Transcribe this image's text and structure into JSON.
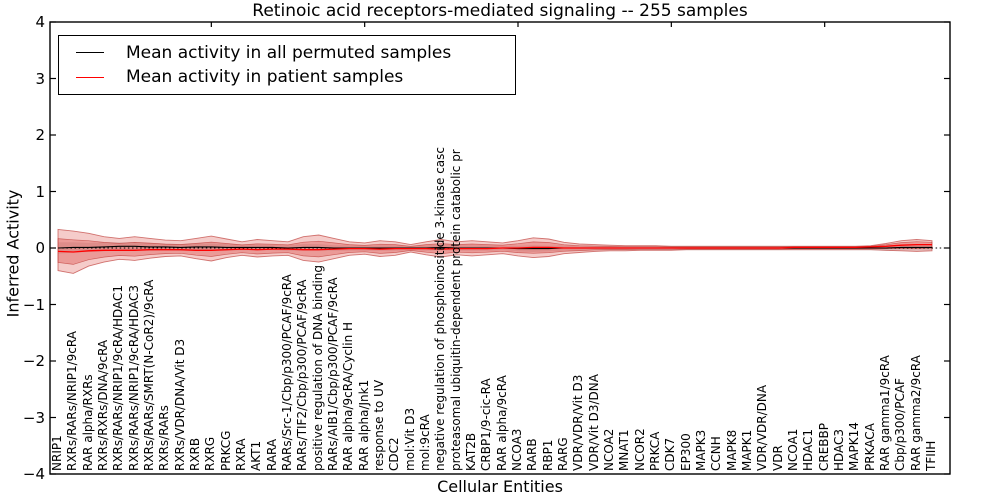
{
  "title": "Retinoic acid receptors-mediated signaling -- 255 samples",
  "axes": {
    "xlabel": "Cellular Entities",
    "ylabel": "Inferred Activity",
    "yticks": [
      4,
      3,
      2,
      1,
      0,
      -1,
      -2,
      -3,
      -4
    ],
    "ylim": [
      -4,
      4
    ]
  },
  "legend": {
    "items": [
      {
        "label": "Mean activity in all permuted samples",
        "color": "#000000"
      },
      {
        "label": "Mean activity in patient samples",
        "color": "#ff0000"
      }
    ]
  },
  "colors": {
    "frame": "#000000",
    "band_fill": "rgba(222,85,80,0.30)",
    "band_inner_fill": "rgba(222,85,80,0.42)",
    "band_edge": "rgba(187,52,47,0.65)",
    "permuted_band_fill": "rgba(0,0,0,0.13)",
    "zero_line": "#000000",
    "permuted_line": "#000000",
    "patient_line": "#ff0000"
  },
  "chart_data": {
    "type": "line",
    "title": "Retinoic acid receptors-mediated signaling -- 255 samples",
    "xlabel": "Cellular Entities",
    "ylabel": "Inferred Activity",
    "ylim": [
      -4,
      4
    ],
    "grid": false,
    "legend_position": "upper left",
    "zero_reference_line": true,
    "categories": [
      "NRIP1",
      "RXRs/RARs/NRIP1/9cRA",
      "RAR alpha/RXRs",
      "RXRs/RXRs/DNA/9cRA",
      "RXRs/RARs/NRIP1/9cRA/HDAC1",
      "RXRs/RARs/NRIP1/9cRA/HDAC3",
      "RXRs/RARs/SMRT(N-CoR2)/9cRA",
      "RXRs/RARs",
      "RXRs/VDR/DNA/Vit D3",
      "RXRB",
      "RXRG",
      "PRKCG",
      "RXRA",
      "AKT1",
      "RARA",
      "RARs/Src-1/Cbp/p300/PCAF/9cRA",
      "RARs/TIF2/Cbp/p300/PCAF/9cRA",
      "positive regulation of DNA binding",
      "RARs/AIB1/Cbp/p300/PCAF/9cRA",
      "RAR alpha/9cRA/Cyclin H",
      "RAR alpha/Jnk1",
      "response to UV",
      "CDC2",
      "mol:Vit D3",
      "mol:9cRA",
      "negative regulation of phosphoinositide 3-kinase casc",
      "proteasomal ubiquitin-dependent protein catabolic pr",
      "KAT2B",
      "CRBP1/9-cic-RA",
      "RAR alpha/9cRA",
      "NCOA3",
      "RARB",
      "RBP1",
      "RARG",
      "VDR/VDR/Vit D3",
      "VDR/Vit D3/DNA",
      "NCOA2",
      "MNAT1",
      "NCOR2",
      "PRKCA",
      "CDK7",
      "EP300",
      "MAPK3",
      "CCNH",
      "MAPK8",
      "MAPK1",
      "VDR/VDR/DNA",
      "VDR",
      "NCOA1",
      "HDAC1",
      "CREBBP",
      "HDAC3",
      "MAPK14",
      "PRKACA",
      "RAR gamma1/9cRA",
      "Cbp/p300/PCAF",
      "RAR gamma2/9cRA",
      "TFIIH"
    ],
    "series": [
      {
        "name": "Mean activity in all permuted samples",
        "color": "#000000",
        "values": [
          0,
          0.01,
          0.01,
          0.02,
          0.03,
          0.03,
          0.02,
          0.02,
          0.01,
          0.02,
          0.02,
          0.01,
          0.01,
          0.01,
          0.01,
          0,
          0.01,
          0.01,
          0,
          0,
          0,
          0,
          0,
          0,
          0,
          0.01,
          0,
          0,
          0,
          0,
          -0.01,
          -0.01,
          -0.01,
          0,
          0,
          0,
          0,
          0,
          0,
          0,
          0,
          0,
          0,
          0,
          0,
          0,
          0,
          0,
          0,
          0,
          0,
          0,
          0,
          0,
          0,
          0.01,
          0.01,
          0.01
        ]
      },
      {
        "name": "Mean activity in patient samples",
        "color": "#ff0000",
        "values": [
          -0.06,
          -0.07,
          -0.05,
          -0.04,
          -0.04,
          -0.04,
          -0.03,
          -0.03,
          -0.03,
          -0.04,
          -0.04,
          -0.03,
          -0.02,
          -0.03,
          -0.02,
          -0.02,
          -0.03,
          -0.03,
          -0.02,
          -0.01,
          -0.01,
          -0.02,
          -0.01,
          -0.01,
          -0.01,
          -0.02,
          -0.01,
          -0.01,
          -0.01,
          0,
          0,
          0.01,
          0.01,
          0,
          0,
          0,
          0,
          0,
          0,
          0,
          0,
          0,
          0,
          0,
          0,
          0,
          0,
          0,
          0.01,
          0.01,
          0.01,
          0.01,
          0.01,
          0.02,
          0.03,
          0.05,
          0.06,
          0.06
        ]
      }
    ],
    "patient_band": {
      "upper": [
        0.33,
        0.3,
        0.26,
        0.2,
        0.17,
        0.2,
        0.17,
        0.14,
        0.13,
        0.17,
        0.21,
        0.16,
        0.11,
        0.15,
        0.13,
        0.11,
        0.2,
        0.23,
        0.17,
        0.11,
        0.09,
        0.13,
        0.11,
        0.06,
        0.11,
        0.15,
        0.11,
        0.13,
        0.11,
        0.09,
        0.13,
        0.18,
        0.16,
        0.1,
        0.07,
        0.06,
        0.05,
        0.04,
        0.04,
        0.04,
        0.03,
        0.03,
        0.03,
        0.03,
        0.03,
        0.03,
        0.03,
        0.03,
        0.03,
        0.03,
        0.03,
        0.03,
        0.03,
        0.04,
        0.08,
        0.13,
        0.15,
        0.13
      ],
      "lower": [
        -0.4,
        -0.45,
        -0.32,
        -0.25,
        -0.2,
        -0.22,
        -0.18,
        -0.15,
        -0.14,
        -0.19,
        -0.23,
        -0.17,
        -0.13,
        -0.16,
        -0.14,
        -0.13,
        -0.22,
        -0.25,
        -0.19,
        -0.13,
        -0.11,
        -0.15,
        -0.13,
        -0.07,
        -0.12,
        -0.16,
        -0.12,
        -0.14,
        -0.12,
        -0.1,
        -0.14,
        -0.17,
        -0.15,
        -0.1,
        -0.08,
        -0.06,
        -0.05,
        -0.05,
        -0.04,
        -0.04,
        -0.04,
        -0.03,
        -0.03,
        -0.03,
        -0.03,
        -0.03,
        -0.03,
        -0.03,
        -0.03,
        -0.03,
        -0.03,
        -0.03,
        -0.03,
        -0.03,
        -0.04,
        -0.05,
        -0.06,
        -0.05
      ]
    },
    "permuted_band_half_width": [
      0.1,
      0.09,
      0.08,
      0.08,
      0.07,
      0.07,
      0.07,
      0.06,
      0.06,
      0.06,
      0.06,
      0.06,
      0.05,
      0.05,
      0.05,
      0.05,
      0.06,
      0.06,
      0.05,
      0.05,
      0.05,
      0.05,
      0.05,
      0.04,
      0.05,
      0.05,
      0.05,
      0.05,
      0.05,
      0.04,
      0.05,
      0.06,
      0.05,
      0.05,
      0.04,
      0.04,
      0.04,
      0.04,
      0.04,
      0.04,
      0.04,
      0.04,
      0.04,
      0.04,
      0.04,
      0.04,
      0.04,
      0.04,
      0.04,
      0.04,
      0.04,
      0.04,
      0.04,
      0.04,
      0.05,
      0.05,
      0.06,
      0.05
    ]
  }
}
